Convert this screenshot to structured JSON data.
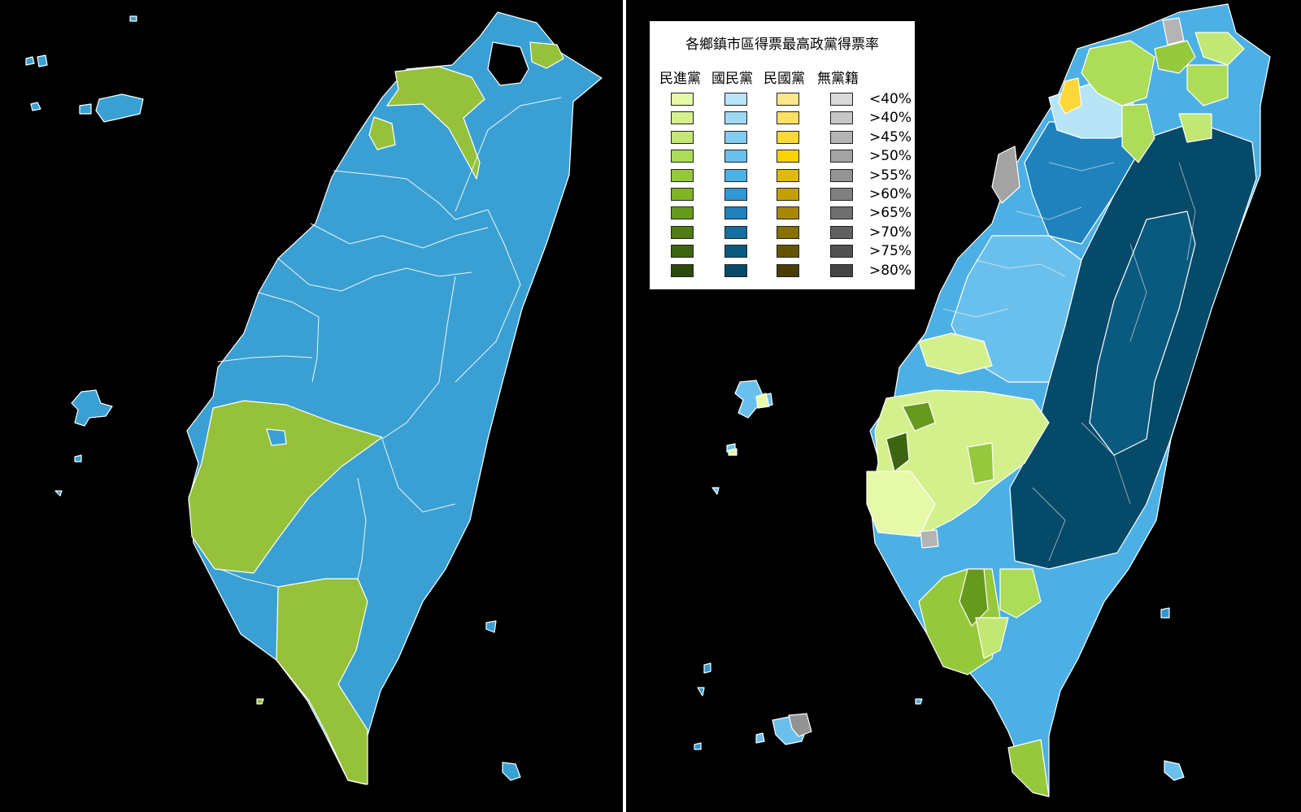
{
  "legend": {
    "title": "各鄉鎮市區得票最高政黨得票率",
    "parties": [
      "民進黨",
      "國民黨",
      "民國黨",
      "無黨籍"
    ],
    "levels": [
      "<40%",
      ">40%",
      ">45%",
      ">50%",
      ">55%",
      ">60%",
      ">65%",
      ">70%",
      ">75%",
      ">80%"
    ],
    "colors": {
      "dpp": [
        "#e6f9a8",
        "#d4f08c",
        "#c2e873",
        "#acdc58",
        "#96c83c",
        "#7fb424",
        "#679a1c",
        "#4f7c14",
        "#3d6410",
        "#2c4a0c"
      ],
      "kmt": [
        "#b8e4f8",
        "#9fd8f2",
        "#84cbee",
        "#6ac0ec",
        "#4cb0e4",
        "#2f97d3",
        "#1f82bc",
        "#13709f",
        "#0a5a80",
        "#064a6a"
      ],
      "mkt": [
        "#fce68a",
        "#fde065",
        "#fdd838",
        "#fdd400",
        "#dfbb00",
        "#c3a000",
        "#a88800",
        "#857000",
        "#665500",
        "#4a3d00"
      ],
      "ind": [
        "#d9d9d9",
        "#c6c6c6",
        "#b4b4b4",
        "#a3a3a3",
        "#939393",
        "#7f7f7f",
        "#6f6f6f",
        "#606060",
        "#515151",
        "#444444"
      ]
    }
  },
  "map_colors": {
    "dpp": "#96c13a",
    "kmt": "#3aa0d3",
    "background": "#000000",
    "border": "#ffffff"
  }
}
